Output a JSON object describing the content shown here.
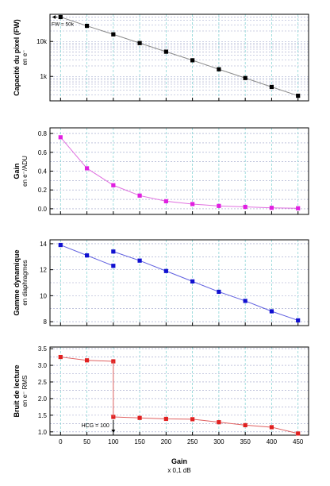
{
  "chart_data": [
    {
      "type": "line",
      "ylabel_main": "Capacité du pixel (FW)",
      "ylabel_sub": "en e⁻",
      "yscale": "log",
      "ylim": [
        200,
        60000
      ],
      "yticks": [
        {
          "v": 1000,
          "label": "1k"
        },
        {
          "v": 10000,
          "label": "10k"
        }
      ],
      "color": "#000000",
      "line_color": "#8a8a8a",
      "x": [
        0,
        50,
        100,
        150,
        200,
        250,
        300,
        350,
        400,
        450
      ],
      "values": [
        50000,
        28000,
        16000,
        9000,
        5100,
        2900,
        1600,
        900,
        500,
        280
      ],
      "annotation": "FW = 50k"
    },
    {
      "type": "line",
      "ylabel_main": "Gain",
      "ylabel_sub": "en e⁻/ADU",
      "ylim": [
        -0.06,
        0.86
      ],
      "yticks": [
        {
          "v": 0.0,
          "label": "0.0"
        },
        {
          "v": 0.2,
          "label": "0.2"
        },
        {
          "v": 0.4,
          "label": "0.4"
        },
        {
          "v": 0.6,
          "label": "0.6"
        },
        {
          "v": 0.8,
          "label": "0.8"
        }
      ],
      "color": "#e020e0",
      "line_color": "#e070e0",
      "x": [
        0,
        50,
        100,
        150,
        200,
        250,
        300,
        350,
        400,
        450
      ],
      "values": [
        0.76,
        0.43,
        0.25,
        0.14,
        0.08,
        0.05,
        0.03,
        0.02,
        0.01,
        0.005
      ]
    },
    {
      "type": "line",
      "ylabel_main": "Gamme dynamique",
      "ylabel_sub": "en diaphragmes",
      "ylim": [
        7.7,
        14.3
      ],
      "yticks": [
        {
          "v": 8,
          "label": "8"
        },
        {
          "v": 10,
          "label": "10"
        },
        {
          "v": 12,
          "label": "12"
        },
        {
          "v": 14,
          "label": "14"
        }
      ],
      "color": "#1010d0",
      "line_color": "#6060e0",
      "x": [
        0,
        50,
        100,
        100,
        150,
        200,
        250,
        300,
        350,
        400,
        450
      ],
      "values": [
        13.9,
        13.1,
        12.3,
        13.4,
        12.7,
        11.9,
        11.1,
        10.3,
        9.6,
        8.8,
        8.1
      ]
    },
    {
      "type": "line",
      "ylabel_main": "Bruit de lecture",
      "ylabel_sub": "en e⁻ RMS",
      "ylim": [
        0.9,
        3.55
      ],
      "yticks": [
        {
          "v": 1.0,
          "label": "1.0"
        },
        {
          "v": 1.5,
          "label": "1.5"
        },
        {
          "v": 2.0,
          "label": "2.0"
        },
        {
          "v": 2.5,
          "label": "2.5"
        },
        {
          "v": 3.0,
          "label": "3.0"
        },
        {
          "v": 3.5,
          "label": "3.5"
        }
      ],
      "color": "#e02020",
      "line_color": "#e06060",
      "x": [
        0,
        50,
        100,
        100,
        150,
        200,
        250,
        300,
        350,
        400,
        450
      ],
      "values": [
        3.25,
        3.15,
        3.12,
        1.45,
        1.42,
        1.39,
        1.38,
        1.29,
        1.2,
        1.14,
        0.95
      ],
      "annotation": "HCG = 100"
    }
  ],
  "x_axis": {
    "xlim": [
      -20,
      470
    ],
    "ticks": [
      0,
      50,
      100,
      150,
      200,
      250,
      300,
      350,
      400,
      450
    ],
    "label": "Gain",
    "unit": "x 0,1 dB"
  },
  "grid": true,
  "vgrid_color": "#7ad0d0",
  "hgrid_color": "#9aa0c8"
}
